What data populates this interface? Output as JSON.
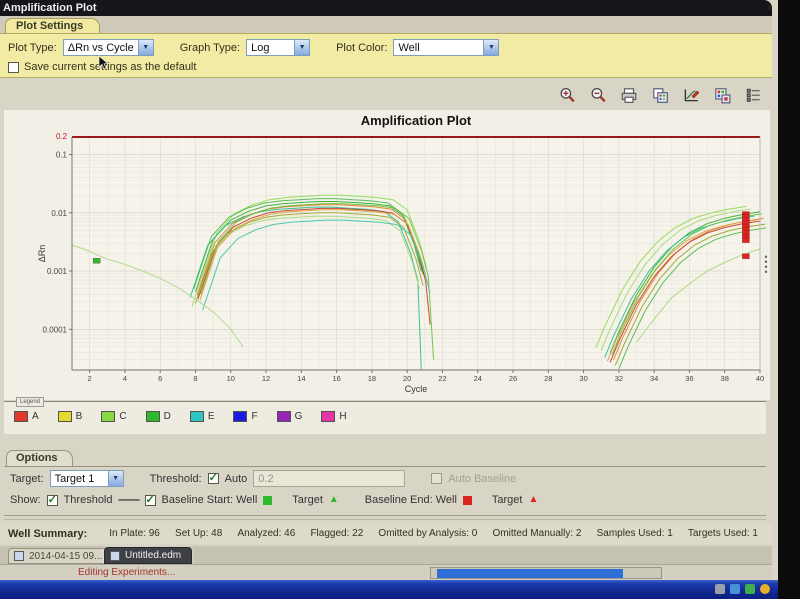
{
  "window": {
    "title": "Amplification Plot",
    "collapse_icon": "‹"
  },
  "plot_settings_tab": "Plot Settings",
  "settings": {
    "plot_type_label": "Plot Type:",
    "plot_type_value": "ΔRn vs Cycle",
    "graph_type_label": "Graph Type:",
    "graph_type_value": "Log",
    "plot_color_label": "Plot Color:",
    "plot_color_value": "Well",
    "save_default_label": "Save current settings as the default"
  },
  "toolbar": {
    "icons": [
      "zoom-in",
      "zoom-out",
      "print",
      "copy-plate",
      "edit-plot",
      "export-plate",
      "legend-list"
    ]
  },
  "chart_data": {
    "type": "line",
    "title": "Amplification Plot",
    "xlabel": "Cycle",
    "ylabel": "ΔRn",
    "xlim": [
      1,
      40
    ],
    "ylim_log": [
      2e-05,
      0.2
    ],
    "x_ticks": [
      2,
      4,
      6,
      8,
      10,
      12,
      14,
      16,
      18,
      20,
      22,
      24,
      26,
      28,
      30,
      32,
      34,
      36,
      38,
      40
    ],
    "y_ticks": [
      0.1,
      0.01,
      0.001,
      0.0001
    ],
    "y_tick_labels": [
      "0.1",
      "0.01",
      "0.001",
      "0.0001"
    ],
    "grid": true,
    "threshold": {
      "value": 0.2,
      "label": "0.2",
      "color": "#9b1a1a"
    },
    "mid_base": [
      [
        8,
        0.00035
      ],
      [
        8.5,
        0.001
      ],
      [
        9,
        0.0028
      ],
      [
        10,
        0.006
      ],
      [
        11,
        0.0085
      ],
      [
        12,
        0.0105
      ],
      [
        13,
        0.0115
      ],
      [
        14,
        0.012
      ],
      [
        15,
        0.0125
      ],
      [
        16,
        0.0125
      ],
      [
        17,
        0.012
      ],
      [
        18,
        0.0115
      ],
      [
        19,
        0.0105
      ],
      [
        19.8,
        0.007
      ],
      [
        20.5,
        0.002
      ],
      [
        20.9,
        0.0007
      ]
    ],
    "right_base": [
      [
        31.5,
        3e-05
      ],
      [
        32,
        7e-05
      ],
      [
        33,
        0.0003
      ],
      [
        34,
        0.0009
      ],
      [
        35,
        0.002
      ],
      [
        36,
        0.0035
      ],
      [
        37,
        0.005
      ],
      [
        38,
        0.0062
      ],
      [
        39,
        0.0072
      ],
      [
        40,
        0.008
      ]
    ],
    "mid_series": [
      {
        "color": "#8fdc55",
        "scale": 1.6,
        "dx": 0.2
      },
      {
        "color": "#3aae3a",
        "scale": 1.25,
        "dx": 0
      },
      {
        "color": "#2fbf96",
        "scale": 1.0,
        "dx": -0.3,
        "tail": [
          [
            20.8,
            2e-05
          ]
        ]
      },
      {
        "color": "#e0822e",
        "scale": 1.1,
        "dx": 0.1
      },
      {
        "color": "#c8402e",
        "scale": 0.95,
        "dx": 0.15,
        "tail": [
          [
            21.3,
            0.00012
          ]
        ]
      },
      {
        "color": "#9fa32e",
        "scale": 0.8,
        "dx": 0
      },
      {
        "color": "#aad97a",
        "scale": 0.7,
        "dx": -0.2
      },
      {
        "color": "#52bd52",
        "scale": 1.4,
        "dx": -0.1
      },
      {
        "color": "#d9a245",
        "scale": 0.9,
        "dx": 0.25
      },
      {
        "color": "#6cc441",
        "scale": 1.15,
        "dx": 0.3,
        "tail": [
          [
            21.5,
            3e-05
          ]
        ]
      },
      {
        "color": "#3fc4ae",
        "scale": 0.6,
        "dx": 0.4
      }
    ],
    "right_series": [
      {
        "color": "#8fdc55",
        "scale": 1.6,
        "dx": -0.8
      },
      {
        "color": "#3aae3a",
        "scale": 1.3,
        "dx": 0
      },
      {
        "color": "#2fbf96",
        "scale": 1.1,
        "dx": -0.3
      },
      {
        "color": "#e0822e",
        "scale": 1.0,
        "dx": 0.2
      },
      {
        "color": "#c8402e",
        "scale": 0.9,
        "dx": 0
      },
      {
        "color": "#9fa32e",
        "scale": 0.8,
        "dx": 0.3
      },
      {
        "color": "#aad97a",
        "scale": 1.45,
        "dx": -0.5
      },
      {
        "color": "#52bd52",
        "scale": 0.7,
        "dx": 0.5
      },
      {
        "color": "#d9a245",
        "scale": 0.95,
        "dx": -0.15
      },
      {
        "color": "#6cc441",
        "scale": 1.2,
        "dx": 0.1
      }
    ],
    "extra_series": [
      {
        "color": "#b0d98c",
        "points": [
          [
            1,
            0.0028
          ],
          [
            2,
            0.0022
          ],
          [
            2.4,
            0.0019
          ],
          [
            3,
            0.0016
          ],
          [
            4,
            0.0013
          ],
          [
            5,
            0.001
          ],
          [
            6,
            0.00075
          ],
          [
            7,
            0.00052
          ],
          [
            8,
            0.00033
          ],
          [
            9,
            0.0002
          ],
          [
            10,
            0.0001
          ],
          [
            10.7,
            5e-05
          ]
        ]
      },
      {
        "color": "#aad97a",
        "points": [
          [
            33,
            6e-05
          ],
          [
            34,
            0.00015
          ],
          [
            35,
            0.00035
          ],
          [
            36,
            0.0006
          ],
          [
            37,
            0.001
          ],
          [
            38,
            0.0014
          ],
          [
            39,
            0.0019
          ],
          [
            40,
            0.0024
          ]
        ]
      }
    ],
    "markers": {
      "baseline_start": {
        "color": "#2eb82e",
        "points": [
          [
            2.4,
            0.0015
          ]
        ]
      },
      "baseline_end": {
        "color": "#dd2222",
        "points": [
          [
            39.2,
            0.0095
          ],
          [
            39.2,
            0.0085
          ],
          [
            39.2,
            0.0075
          ],
          [
            39.2,
            0.0066
          ],
          [
            39.2,
            0.0058
          ],
          [
            39.2,
            0.0051
          ],
          [
            39.2,
            0.0045
          ],
          [
            39.2,
            0.0039
          ],
          [
            39.2,
            0.0034
          ],
          [
            39.2,
            0.0018
          ]
        ]
      }
    }
  },
  "legend": {
    "title": "Legend",
    "items": [
      {
        "label": "A",
        "color": "#e03a2f"
      },
      {
        "label": "B",
        "color": "#e5d932"
      },
      {
        "label": "C",
        "color": "#86d943"
      },
      {
        "label": "D",
        "color": "#2eb82e"
      },
      {
        "label": "E",
        "color": "#2ec4c4"
      },
      {
        "label": "F",
        "color": "#1a1ae0"
      },
      {
        "label": "G",
        "color": "#9326b5"
      },
      {
        "label": "H",
        "color": "#e832a8"
      }
    ]
  },
  "options": {
    "tab_label": "Options",
    "target_label": "Target:",
    "target_value": "Target 1",
    "threshold_label": "Threshold:",
    "auto_label": "Auto",
    "threshold_value": "0.2",
    "auto_baseline_label": "Auto Baseline",
    "show_label": "Show:",
    "show_threshold_label": "Threshold",
    "baseline_start_label": "Baseline Start: Well",
    "baseline_start_target_label": "Target",
    "baseline_end_label": "Baseline End: Well",
    "baseline_end_target_label": "Target",
    "marker_green": "#2eb82e",
    "marker_red": "#dd2222"
  },
  "well_summary": {
    "label": "Well Summary:",
    "stats": [
      {
        "label": "In Plate:",
        "value": "96"
      },
      {
        "label": "Set Up:",
        "value": "48"
      },
      {
        "label": "Analyzed:",
        "value": "46"
      },
      {
        "label": "Flagged:",
        "value": "22"
      },
      {
        "label": "Omitted by Analysis:",
        "value": "0"
      },
      {
        "label": "Omitted Manually:",
        "value": "2"
      },
      {
        "label": "Samples Used:",
        "value": "1"
      },
      {
        "label": "Targets Used:",
        "value": "1"
      }
    ]
  },
  "doc_tabs": {
    "tab1_label": "2014-04-15 09...",
    "tab1_close": "×",
    "tab2_label": "Untitled.edm"
  },
  "status": {
    "editing_text": "Editing Experiments...",
    "progress_color": "#2e6fd8"
  }
}
